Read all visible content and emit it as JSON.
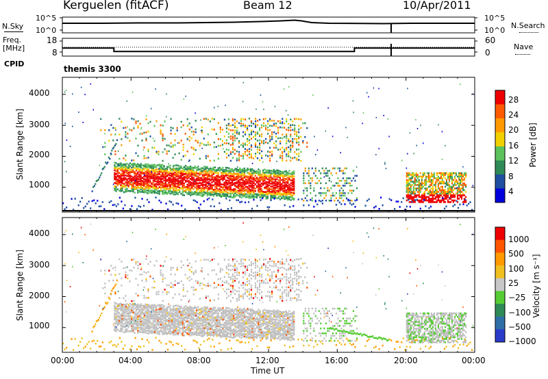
{
  "header": {
    "site": "Kerguelen (fitACF)",
    "beam": "Beam 12",
    "date": "10/Apr/2011"
  },
  "panels": {
    "nsky_label": "N.Sky",
    "nsky_ticks": [
      "10^5",
      "10^0"
    ],
    "nsearch_label": "N.Search",
    "nsearch_ticks": [
      "10^5",
      "10^0"
    ],
    "freq_label_1": "Freq.",
    "freq_label_2": "[MHz]",
    "freq_ticks": [
      "18",
      "8"
    ],
    "nave_label": "Nave",
    "nave_ticks": [
      "60",
      "0"
    ],
    "cpid_label": "CPID",
    "cpid_value": "themis 3300"
  },
  "colors": {
    "power_scale": [
      "#0000dd",
      "#1f4fa0",
      "#2e8b57",
      "#5cc25c",
      "#f2d000",
      "#ff9a00",
      "#ff5a00",
      "#ee0000"
    ],
    "velocity_scale": [
      "#2a3cc8",
      "#2f6fa8",
      "#2e8b57",
      "#55cc33",
      "#c8c8c8",
      "#f0c020",
      "#ff9a00",
      "#ff5500",
      "#ee0000"
    ],
    "ground_scatter": "#c0c0c0"
  },
  "chart_data": [
    {
      "type": "heatmap",
      "panel": "power",
      "ylabel": "Slant Range [km]",
      "xlabel": "Time UT",
      "yticks": [
        "1000",
        "2000",
        "3000",
        "4000"
      ],
      "xticks": [
        "00:00",
        "04:00",
        "08:00",
        "12:00",
        "16:00",
        "20:00",
        "00:00"
      ],
      "ylim": [
        200,
        4500
      ],
      "xlim": [
        0,
        24
      ],
      "colorbar_label": "Power [dB]",
      "colorbar_ticks": [
        "28",
        "24",
        "20",
        "16",
        "12",
        "8",
        "4"
      ],
      "colorbar_range": [
        0,
        30
      ]
    },
    {
      "type": "heatmap",
      "panel": "velocity",
      "ylabel": "Slant Range [km]",
      "xlabel": "Time UT",
      "yticks": [
        "1000",
        "2000",
        "3000",
        "4000"
      ],
      "xticks": [
        "00:00",
        "04:00",
        "08:00",
        "12:00",
        "16:00",
        "20:00",
        "00:00"
      ],
      "ylim": [
        200,
        4500
      ],
      "xlim": [
        0,
        24
      ],
      "colorbar_label": "Velocity [m s⁻¹]",
      "colorbar_ticks": [
        "1000",
        "500",
        "100",
        "25",
        "−25",
        "−100",
        "−500",
        "−1000"
      ],
      "colorbar_range": [
        -1000,
        1000
      ]
    },
    {
      "type": "line",
      "panel": "frequency",
      "x": [
        0,
        3.0,
        3.0,
        17.0,
        17.0,
        19.0,
        19.0,
        24
      ],
      "values": [
        12.5,
        12.5,
        10.6,
        10.6,
        12.5,
        12.5,
        12.5,
        12.5
      ],
      "ylim": [
        8,
        18
      ]
    }
  ]
}
